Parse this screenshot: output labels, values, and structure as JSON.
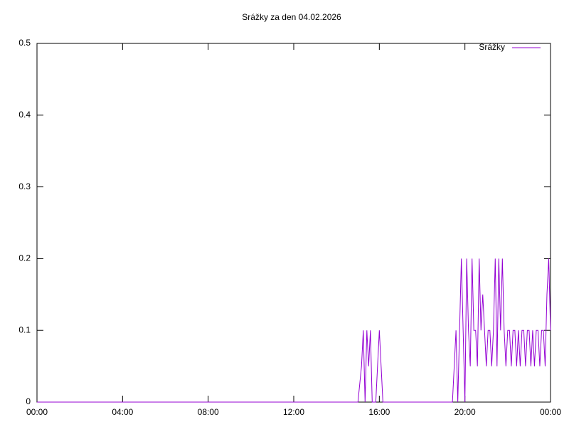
{
  "chart_data": {
    "type": "line",
    "title": "Srážky za den 04.02.2026",
    "x": [
      0,
      900,
      910,
      915,
      920,
      925,
      930,
      935,
      940,
      950,
      955,
      960,
      965,
      970,
      1165,
      1170,
      1175,
      1180,
      1185,
      1190,
      1195,
      1200,
      1205,
      1210,
      1215,
      1220,
      1225,
      1230,
      1235,
      1240,
      1245,
      1250,
      1255,
      1260,
      1265,
      1270,
      1275,
      1280,
      1285,
      1290,
      1295,
      1300,
      1305,
      1310,
      1315,
      1320,
      1325,
      1330,
      1335,
      1340,
      1345,
      1350,
      1355,
      1360,
      1365,
      1370,
      1375,
      1380,
      1385,
      1390,
      1395,
      1400,
      1405,
      1410,
      1415,
      1420,
      1425,
      1430,
      1435,
      1440
    ],
    "series": [
      {
        "name": "Srážky",
        "color": "#9400d3",
        "values": [
          0,
          0,
          0.05,
          0.1,
          0,
          0.1,
          0.05,
          0.1,
          0,
          0,
          0.05,
          0.1,
          0.05,
          0,
          0,
          0.05,
          0.1,
          0,
          0.1,
          0.2,
          0.1,
          0,
          0.2,
          0.1,
          0.05,
          0.2,
          0.1,
          0.1,
          0.05,
          0.2,
          0.1,
          0.15,
          0.1,
          0.05,
          0.1,
          0.1,
          0.05,
          0.1,
          0.2,
          0.05,
          0.2,
          0.1,
          0.2,
          0.1,
          0.05,
          0.1,
          0.1,
          0.05,
          0.1,
          0.1,
          0.05,
          0.1,
          0.05,
          0.1,
          0.1,
          0.05,
          0.1,
          0.1,
          0.05,
          0.1,
          0.05,
          0.1,
          0.1,
          0.05,
          0.1,
          0.1,
          0.05,
          0.15,
          0.2,
          0.1
        ]
      }
    ],
    "xlim": [
      0,
      1440
    ],
    "xticks": [
      {
        "value": 0,
        "label": "00:00"
      },
      {
        "value": 240,
        "label": "04:00"
      },
      {
        "value": 480,
        "label": "08:00"
      },
      {
        "value": 720,
        "label": "12:00"
      },
      {
        "value": 960,
        "label": "16:00"
      },
      {
        "value": 1200,
        "label": "20:00"
      },
      {
        "value": 1440,
        "label": "00:00"
      }
    ],
    "ylim": [
      0,
      0.5
    ],
    "yticks": [
      0,
      0.1,
      0.2,
      0.3,
      0.4,
      0.5
    ],
    "legend": "top-right"
  }
}
